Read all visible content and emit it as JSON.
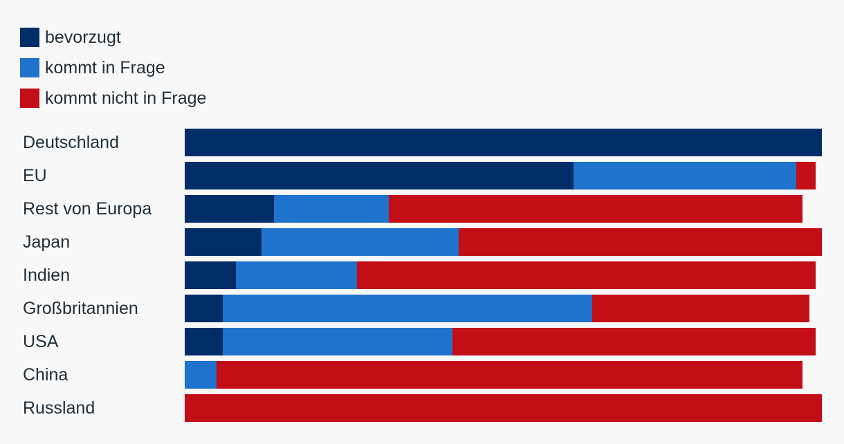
{
  "colors": {
    "background": "#f8f8f9",
    "text": "#222f38",
    "bevorzugt": "#002d67",
    "kommt_in_frage": "#1f73cd",
    "kommt_nicht_in_frage": "#c30d17"
  },
  "legend": {
    "items": [
      {
        "label": "bevorzugt",
        "color": "#002d67"
      },
      {
        "label": "kommt in Frage",
        "color": "#1f73cd"
      },
      {
        "label": "kommt nicht in Frage",
        "color": "#c30d17"
      }
    ]
  },
  "chart_data": {
    "type": "bar",
    "orientation": "horizontal",
    "stacked": true,
    "unit": "percent",
    "title": "",
    "xlabel": "",
    "ylabel": "",
    "xlim": [
      0,
      100
    ],
    "grid": false,
    "axis_ticks_visible": false,
    "legend_position": "top-left",
    "categories": [
      "Deutschland",
      "EU",
      "Rest von Europa",
      "Japan",
      "Indien",
      "Großbritannien",
      "USA",
      "China",
      "Russland"
    ],
    "series": [
      {
        "name": "bevorzugt",
        "color": "#002d67",
        "values": [
          100,
          61,
          14,
          12,
          8,
          6,
          6,
          0,
          0
        ]
      },
      {
        "name": "kommt in Frage",
        "color": "#1f73cd",
        "values": [
          0,
          35,
          18,
          31,
          19,
          58,
          36,
          5,
          0
        ]
      },
      {
        "name": "kommt nicht in Frage",
        "color": "#c30d17",
        "values": [
          0,
          3,
          65,
          57,
          72,
          34,
          57,
          92,
          100
        ]
      }
    ]
  }
}
